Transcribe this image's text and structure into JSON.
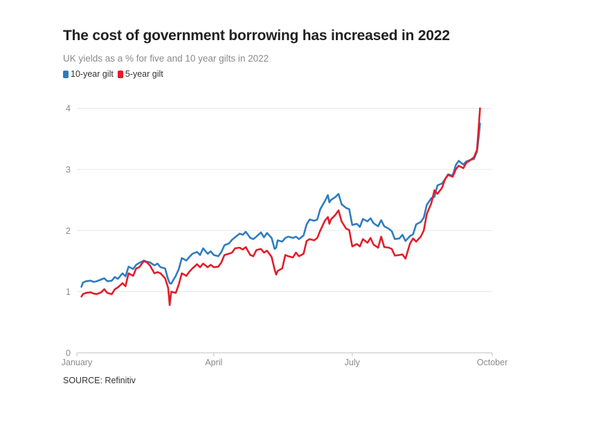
{
  "title": "The cost of government borrowing has increased in 2022",
  "subtitle": "UK yields as a % for five and 10 year gilts in 2022",
  "source": "SOURCE: Refinitiv",
  "colors": {
    "ten_year": "#2e7cbf",
    "five_year": "#e11d2a",
    "grid": "#e6e6e6",
    "axis": "#bfbfbf",
    "tick_text": "#8a8a8a"
  },
  "chart_data": {
    "type": "line",
    "title": "The cost of government borrowing has increased in 2022",
    "xlabel": "",
    "ylabel": "",
    "ylim": [
      0,
      4.3
    ],
    "yticks": [
      0,
      1,
      2,
      3,
      4
    ],
    "xlim": [
      "2022-01-01",
      "2022-10-01"
    ],
    "xticks": [
      {
        "date": "2022-01-01",
        "label": "January"
      },
      {
        "date": "2022-04-01",
        "label": "April"
      },
      {
        "date": "2022-07-01",
        "label": "July"
      },
      {
        "date": "2022-10-01",
        "label": "October"
      }
    ],
    "grid": true,
    "legend": "top-left",
    "series": [
      {
        "name": "10-year gilt",
        "color": "#2e7cbf",
        "points": [
          [
            "2022-01-04",
            1.08
          ],
          [
            "2022-01-05",
            1.15
          ],
          [
            "2022-01-07",
            1.17
          ],
          [
            "2022-01-10",
            1.18
          ],
          [
            "2022-01-12",
            1.16
          ],
          [
            "2022-01-14",
            1.17
          ],
          [
            "2022-01-17",
            1.2
          ],
          [
            "2022-01-19",
            1.22
          ],
          [
            "2022-01-21",
            1.17
          ],
          [
            "2022-01-24",
            1.18
          ],
          [
            "2022-01-26",
            1.24
          ],
          [
            "2022-01-28",
            1.21
          ],
          [
            "2022-01-31",
            1.3
          ],
          [
            "2022-02-02",
            1.25
          ],
          [
            "2022-02-04",
            1.41
          ],
          [
            "2022-02-07",
            1.37
          ],
          [
            "2022-02-09",
            1.44
          ],
          [
            "2022-02-11",
            1.47
          ],
          [
            "2022-02-14",
            1.51
          ],
          [
            "2022-02-16",
            1.49
          ],
          [
            "2022-02-18",
            1.48
          ],
          [
            "2022-02-21",
            1.43
          ],
          [
            "2022-02-23",
            1.46
          ],
          [
            "2022-02-25",
            1.4
          ],
          [
            "2022-02-28",
            1.38
          ],
          [
            "2022-03-02",
            1.2
          ],
          [
            "2022-03-03",
            1.14
          ],
          [
            "2022-03-04",
            1.13
          ],
          [
            "2022-03-07",
            1.26
          ],
          [
            "2022-03-09",
            1.37
          ],
          [
            "2022-03-11",
            1.55
          ],
          [
            "2022-03-14",
            1.51
          ],
          [
            "2022-03-16",
            1.57
          ],
          [
            "2022-03-18",
            1.62
          ],
          [
            "2022-03-21",
            1.65
          ],
          [
            "2022-03-23",
            1.6
          ],
          [
            "2022-03-25",
            1.71
          ],
          [
            "2022-03-28",
            1.62
          ],
          [
            "2022-03-30",
            1.66
          ],
          [
            "2022-04-01",
            1.6
          ],
          [
            "2022-04-04",
            1.58
          ],
          [
            "2022-04-06",
            1.65
          ],
          [
            "2022-04-08",
            1.76
          ],
          [
            "2022-04-11",
            1.79
          ],
          [
            "2022-04-13",
            1.85
          ],
          [
            "2022-04-15",
            1.89
          ],
          [
            "2022-04-18",
            1.95
          ],
          [
            "2022-04-20",
            1.93
          ],
          [
            "2022-04-22",
            1.98
          ],
          [
            "2022-04-25",
            1.88
          ],
          [
            "2022-04-27",
            1.86
          ],
          [
            "2022-04-29",
            1.9
          ],
          [
            "2022-05-02",
            1.97
          ],
          [
            "2022-05-04",
            1.89
          ],
          [
            "2022-05-06",
            1.96
          ],
          [
            "2022-05-09",
            1.88
          ],
          [
            "2022-05-11",
            1.7
          ],
          [
            "2022-05-12",
            1.72
          ],
          [
            "2022-05-13",
            1.84
          ],
          [
            "2022-05-16",
            1.82
          ],
          [
            "2022-05-18",
            1.88
          ],
          [
            "2022-05-20",
            1.9
          ],
          [
            "2022-05-23",
            1.88
          ],
          [
            "2022-05-25",
            1.9
          ],
          [
            "2022-05-27",
            1.86
          ],
          [
            "2022-05-30",
            1.92
          ],
          [
            "2022-06-01",
            2.1
          ],
          [
            "2022-06-03",
            2.18
          ],
          [
            "2022-06-06",
            2.16
          ],
          [
            "2022-06-08",
            2.18
          ],
          [
            "2022-06-10",
            2.35
          ],
          [
            "2022-06-13",
            2.48
          ],
          [
            "2022-06-15",
            2.58
          ],
          [
            "2022-06-16",
            2.46
          ],
          [
            "2022-06-17",
            2.5
          ],
          [
            "2022-06-20",
            2.55
          ],
          [
            "2022-06-22",
            2.6
          ],
          [
            "2022-06-24",
            2.43
          ],
          [
            "2022-06-27",
            2.37
          ],
          [
            "2022-06-29",
            2.35
          ],
          [
            "2022-07-01",
            2.09
          ],
          [
            "2022-07-04",
            2.11
          ],
          [
            "2022-07-06",
            2.06
          ],
          [
            "2022-07-08",
            2.19
          ],
          [
            "2022-07-11",
            2.15
          ],
          [
            "2022-07-13",
            2.2
          ],
          [
            "2022-07-15",
            2.12
          ],
          [
            "2022-07-18",
            2.07
          ],
          [
            "2022-07-20",
            2.17
          ],
          [
            "2022-07-22",
            2.07
          ],
          [
            "2022-07-25",
            2.03
          ],
          [
            "2022-07-27",
            1.99
          ],
          [
            "2022-07-29",
            1.86
          ],
          [
            "2022-08-01",
            1.87
          ],
          [
            "2022-08-03",
            1.93
          ],
          [
            "2022-08-05",
            1.83
          ],
          [
            "2022-08-08",
            1.91
          ],
          [
            "2022-08-10",
            1.94
          ],
          [
            "2022-08-12",
            2.1
          ],
          [
            "2022-08-15",
            2.14
          ],
          [
            "2022-08-17",
            2.21
          ],
          [
            "2022-08-19",
            2.42
          ],
          [
            "2022-08-22",
            2.53
          ],
          [
            "2022-08-24",
            2.55
          ],
          [
            "2022-08-26",
            2.74
          ],
          [
            "2022-08-29",
            2.77
          ],
          [
            "2022-08-31",
            2.84
          ],
          [
            "2022-09-02",
            2.92
          ],
          [
            "2022-09-05",
            2.9
          ],
          [
            "2022-09-07",
            3.07
          ],
          [
            "2022-09-09",
            3.14
          ],
          [
            "2022-09-12",
            3.08
          ],
          [
            "2022-09-14",
            3.13
          ],
          [
            "2022-09-16",
            3.15
          ],
          [
            "2022-09-19",
            3.17
          ],
          [
            "2022-09-21",
            3.29
          ],
          [
            "2022-09-22",
            3.5
          ],
          [
            "2022-09-23",
            3.75
          ]
        ]
      },
      {
        "name": "5-year gilt",
        "color": "#e11d2a",
        "points": [
          [
            "2022-01-04",
            0.92
          ],
          [
            "2022-01-05",
            0.96
          ],
          [
            "2022-01-07",
            0.98
          ],
          [
            "2022-01-10",
            0.99
          ],
          [
            "2022-01-12",
            0.97
          ],
          [
            "2022-01-14",
            0.96
          ],
          [
            "2022-01-17",
            0.99
          ],
          [
            "2022-01-19",
            1.04
          ],
          [
            "2022-01-21",
            0.98
          ],
          [
            "2022-01-24",
            0.96
          ],
          [
            "2022-01-26",
            1.04
          ],
          [
            "2022-01-28",
            1.07
          ],
          [
            "2022-01-31",
            1.14
          ],
          [
            "2022-02-02",
            1.09
          ],
          [
            "2022-02-04",
            1.3
          ],
          [
            "2022-02-07",
            1.26
          ],
          [
            "2022-02-09",
            1.38
          ],
          [
            "2022-02-11",
            1.4
          ],
          [
            "2022-02-14",
            1.5
          ],
          [
            "2022-02-16",
            1.48
          ],
          [
            "2022-02-18",
            1.43
          ],
          [
            "2022-02-21",
            1.3
          ],
          [
            "2022-02-23",
            1.32
          ],
          [
            "2022-02-25",
            1.3
          ],
          [
            "2022-02-28",
            1.22
          ],
          [
            "2022-03-02",
            1.06
          ],
          [
            "2022-03-03",
            0.78
          ],
          [
            "2022-03-04",
            1.0
          ],
          [
            "2022-03-07",
            0.98
          ],
          [
            "2022-03-09",
            1.12
          ],
          [
            "2022-03-11",
            1.3
          ],
          [
            "2022-03-14",
            1.26
          ],
          [
            "2022-03-16",
            1.33
          ],
          [
            "2022-03-18",
            1.38
          ],
          [
            "2022-03-21",
            1.45
          ],
          [
            "2022-03-23",
            1.4
          ],
          [
            "2022-03-25",
            1.46
          ],
          [
            "2022-03-28",
            1.4
          ],
          [
            "2022-03-30",
            1.44
          ],
          [
            "2022-04-01",
            1.4
          ],
          [
            "2022-04-04",
            1.41
          ],
          [
            "2022-04-06",
            1.48
          ],
          [
            "2022-04-08",
            1.6
          ],
          [
            "2022-04-11",
            1.62
          ],
          [
            "2022-04-13",
            1.64
          ],
          [
            "2022-04-15",
            1.71
          ],
          [
            "2022-04-18",
            1.72
          ],
          [
            "2022-04-20",
            1.69
          ],
          [
            "2022-04-22",
            1.73
          ],
          [
            "2022-04-25",
            1.6
          ],
          [
            "2022-04-27",
            1.58
          ],
          [
            "2022-04-29",
            1.68
          ],
          [
            "2022-05-02",
            1.7
          ],
          [
            "2022-05-04",
            1.64
          ],
          [
            "2022-05-06",
            1.67
          ],
          [
            "2022-05-09",
            1.57
          ],
          [
            "2022-05-11",
            1.36
          ],
          [
            "2022-05-12",
            1.28
          ],
          [
            "2022-05-13",
            1.34
          ],
          [
            "2022-05-16",
            1.38
          ],
          [
            "2022-05-18",
            1.6
          ],
          [
            "2022-05-20",
            1.58
          ],
          [
            "2022-05-23",
            1.56
          ],
          [
            "2022-05-25",
            1.64
          ],
          [
            "2022-05-27",
            1.58
          ],
          [
            "2022-05-30",
            1.62
          ],
          [
            "2022-06-01",
            1.83
          ],
          [
            "2022-06-03",
            1.86
          ],
          [
            "2022-06-06",
            1.84
          ],
          [
            "2022-06-08",
            1.88
          ],
          [
            "2022-06-10",
            2.0
          ],
          [
            "2022-06-13",
            2.16
          ],
          [
            "2022-06-15",
            2.22
          ],
          [
            "2022-06-16",
            2.11
          ],
          [
            "2022-06-17",
            2.18
          ],
          [
            "2022-06-20",
            2.26
          ],
          [
            "2022-06-22",
            2.33
          ],
          [
            "2022-06-24",
            2.15
          ],
          [
            "2022-06-27",
            2.03
          ],
          [
            "2022-06-29",
            2.01
          ],
          [
            "2022-07-01",
            1.74
          ],
          [
            "2022-07-04",
            1.78
          ],
          [
            "2022-07-06",
            1.74
          ],
          [
            "2022-07-08",
            1.86
          ],
          [
            "2022-07-11",
            1.8
          ],
          [
            "2022-07-13",
            1.88
          ],
          [
            "2022-07-15",
            1.77
          ],
          [
            "2022-07-18",
            1.72
          ],
          [
            "2022-07-20",
            1.9
          ],
          [
            "2022-07-22",
            1.73
          ],
          [
            "2022-07-25",
            1.72
          ],
          [
            "2022-07-27",
            1.7
          ],
          [
            "2022-07-29",
            1.59
          ],
          [
            "2022-08-01",
            1.6
          ],
          [
            "2022-08-03",
            1.61
          ],
          [
            "2022-08-05",
            1.54
          ],
          [
            "2022-08-08",
            1.79
          ],
          [
            "2022-08-10",
            1.87
          ],
          [
            "2022-08-12",
            1.82
          ],
          [
            "2022-08-15",
            1.9
          ],
          [
            "2022-08-17",
            2.0
          ],
          [
            "2022-08-19",
            2.27
          ],
          [
            "2022-08-22",
            2.45
          ],
          [
            "2022-08-24",
            2.66
          ],
          [
            "2022-08-26",
            2.6
          ],
          [
            "2022-08-29",
            2.7
          ],
          [
            "2022-08-31",
            2.84
          ],
          [
            "2022-09-02",
            2.91
          ],
          [
            "2022-09-05",
            2.88
          ],
          [
            "2022-09-07",
            3.0
          ],
          [
            "2022-09-09",
            3.06
          ],
          [
            "2022-09-12",
            3.02
          ],
          [
            "2022-09-14",
            3.11
          ],
          [
            "2022-09-16",
            3.14
          ],
          [
            "2022-09-19",
            3.2
          ],
          [
            "2022-09-21",
            3.32
          ],
          [
            "2022-09-22",
            3.65
          ],
          [
            "2022-09-23",
            4.0
          ]
        ]
      }
    ]
  }
}
